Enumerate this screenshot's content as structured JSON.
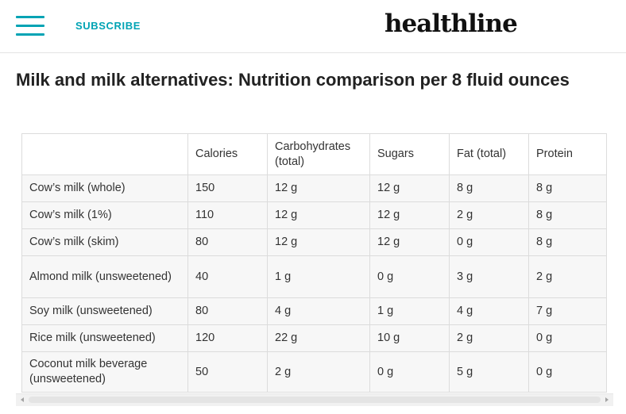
{
  "header": {
    "menu_icon": "hamburger-menu-icon",
    "subscribe_label": "SUBSCRIBE",
    "logo_text": "healthline",
    "accent_color": "#00a3b4"
  },
  "page": {
    "title": "Milk and milk alternatives: Nutrition comparison per 8 fluid ounces"
  },
  "table": {
    "columns": [
      "",
      "Calories",
      "Carbohydrates (total)",
      "Sugars",
      "Fat (total)",
      "Protein"
    ],
    "rows": [
      [
        "Cow’s milk (whole)",
        "150",
        "12 g",
        "12 g",
        "8 g",
        "8 g"
      ],
      [
        "Cow’s milk (1%)",
        "110",
        "12 g",
        "12 g",
        "2 g",
        "8 g"
      ],
      [
        "Cow’s milk (skim)",
        "80",
        "12 g",
        "12 g",
        "0 g",
        "8 g"
      ],
      [
        "Almond milk (unsweetened)",
        "40",
        "1 g",
        "0 g",
        "3 g",
        "2 g"
      ],
      [
        "Soy milk (unsweetened)",
        "80",
        "4 g",
        "1 g",
        "4 g",
        "7 g"
      ],
      [
        "Rice milk (unsweetened)",
        "120",
        "22 g",
        "10 g",
        "2 g",
        "0 g"
      ],
      [
        "Coconut milk beverage (unsweetened)",
        "50",
        "2 g",
        "0 g",
        "5 g",
        "0 g"
      ]
    ]
  }
}
